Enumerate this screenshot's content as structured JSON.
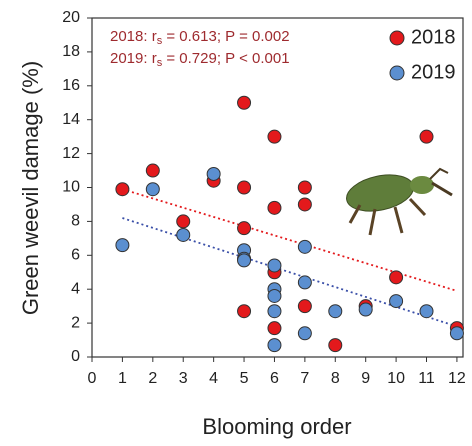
{
  "chart_data": {
    "type": "scatter",
    "xlabel": "Blooming order",
    "ylabel": "Green weevil damage (%)",
    "xlim": [
      0,
      12.2
    ],
    "xticks": [
      0,
      1,
      2,
      3,
      4,
      5,
      6,
      7,
      8,
      9,
      10,
      11,
      12
    ],
    "ylim": [
      0,
      20
    ],
    "yticks": [
      0,
      2,
      4,
      6,
      8,
      10,
      12,
      14,
      16,
      18,
      20
    ],
    "legend": "upper right",
    "annotations": [
      {
        "prefix": "2018: r",
        "sub": "s",
        "suffix": " = 0.613; P = 0.002"
      },
      {
        "prefix": "2019: r",
        "sub": "s",
        "suffix": " = 0.729; P < 0.001"
      }
    ],
    "series": [
      {
        "name": "2018",
        "color": "#e3191c",
        "x": [
          1,
          2,
          3,
          4,
          5,
          5,
          5,
          5,
          6,
          6,
          6,
          6,
          7,
          7,
          7,
          8,
          9,
          10,
          11,
          12
        ],
        "values": [
          9.9,
          11,
          8,
          10.4,
          15,
          10,
          7.6,
          2.7,
          13,
          8.8,
          5,
          1.7,
          10,
          9,
          3,
          0.7,
          3,
          4.7,
          13,
          1.7
        ]
      },
      {
        "name": "2019",
        "color": "#5b8fd0",
        "x": [
          1,
          2,
          3,
          4,
          5,
          5,
          5,
          6,
          6,
          6,
          6,
          6,
          7,
          7,
          7,
          8,
          9,
          10,
          11,
          12
        ],
        "values": [
          6.6,
          9.9,
          7.2,
          10.8,
          6.3,
          5.8,
          5.7,
          5.4,
          4,
          3.6,
          2.7,
          0.7,
          6.5,
          4.4,
          1.4,
          2.7,
          2.8,
          3.3,
          2.7,
          1.4
        ]
      }
    ],
    "trendlines": [
      {
        "color": "#e3191c",
        "x": [
          1,
          12
        ],
        "y": [
          9.9,
          3.9
        ]
      },
      {
        "color": "#3a4fa8",
        "x": [
          1,
          12
        ],
        "y": [
          8.2,
          1.8
        ]
      }
    ]
  }
}
